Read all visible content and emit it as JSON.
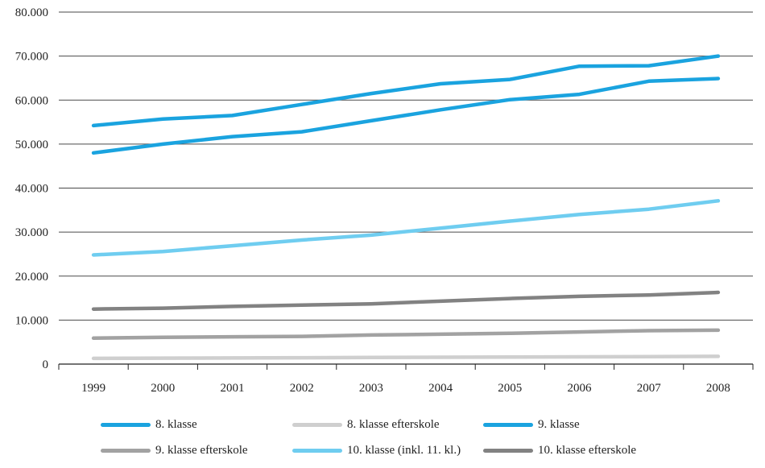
{
  "chart_data": {
    "type": "line",
    "x": [
      "1999",
      "2000",
      "2001",
      "2002",
      "2003",
      "2004",
      "2005",
      "2006",
      "2007",
      "2008"
    ],
    "y_ticks": [
      "0",
      "10.000",
      "20.000",
      "30.000",
      "40.000",
      "50.000",
      "60.000",
      "70.000",
      "80.000"
    ],
    "ylim": [
      0,
      80000
    ],
    "grid": "horizontal",
    "legend_position": "bottom",
    "title": "",
    "xlabel": "",
    "ylabel": "",
    "series": [
      {
        "name": "8. klasse",
        "color": "#1aa3df",
        "values": [
          48000,
          50000,
          51700,
          52800,
          55300,
          57800,
          60100,
          61300,
          64300,
          64900
        ]
      },
      {
        "name": "8. klasse efterskole",
        "color": "#cfcfcf",
        "values": [
          1300,
          1350,
          1400,
          1450,
          1500,
          1550,
          1600,
          1650,
          1700,
          1750
        ]
      },
      {
        "name": "9. klasse",
        "color": "#1aa3df",
        "values": [
          54200,
          55700,
          56500,
          59000,
          61500,
          63700,
          64700,
          67700,
          67800,
          70000
        ]
      },
      {
        "name": "9. klasse efterskole",
        "color": "#a2a2a2",
        "values": [
          5900,
          6100,
          6200,
          6300,
          6600,
          6800,
          7000,
          7300,
          7600,
          7700
        ]
      },
      {
        "name": "10. klasse (inkl. 11. kl.)",
        "color": "#6fcdf0",
        "values": [
          24800,
          25600,
          26900,
          28200,
          29300,
          30900,
          32500,
          34000,
          35200,
          37100
        ]
      },
      {
        "name": "10. klasse efterskole",
        "color": "#828282",
        "values": [
          12500,
          12700,
          13100,
          13400,
          13700,
          14300,
          14900,
          15400,
          15700,
          16300
        ]
      }
    ]
  }
}
